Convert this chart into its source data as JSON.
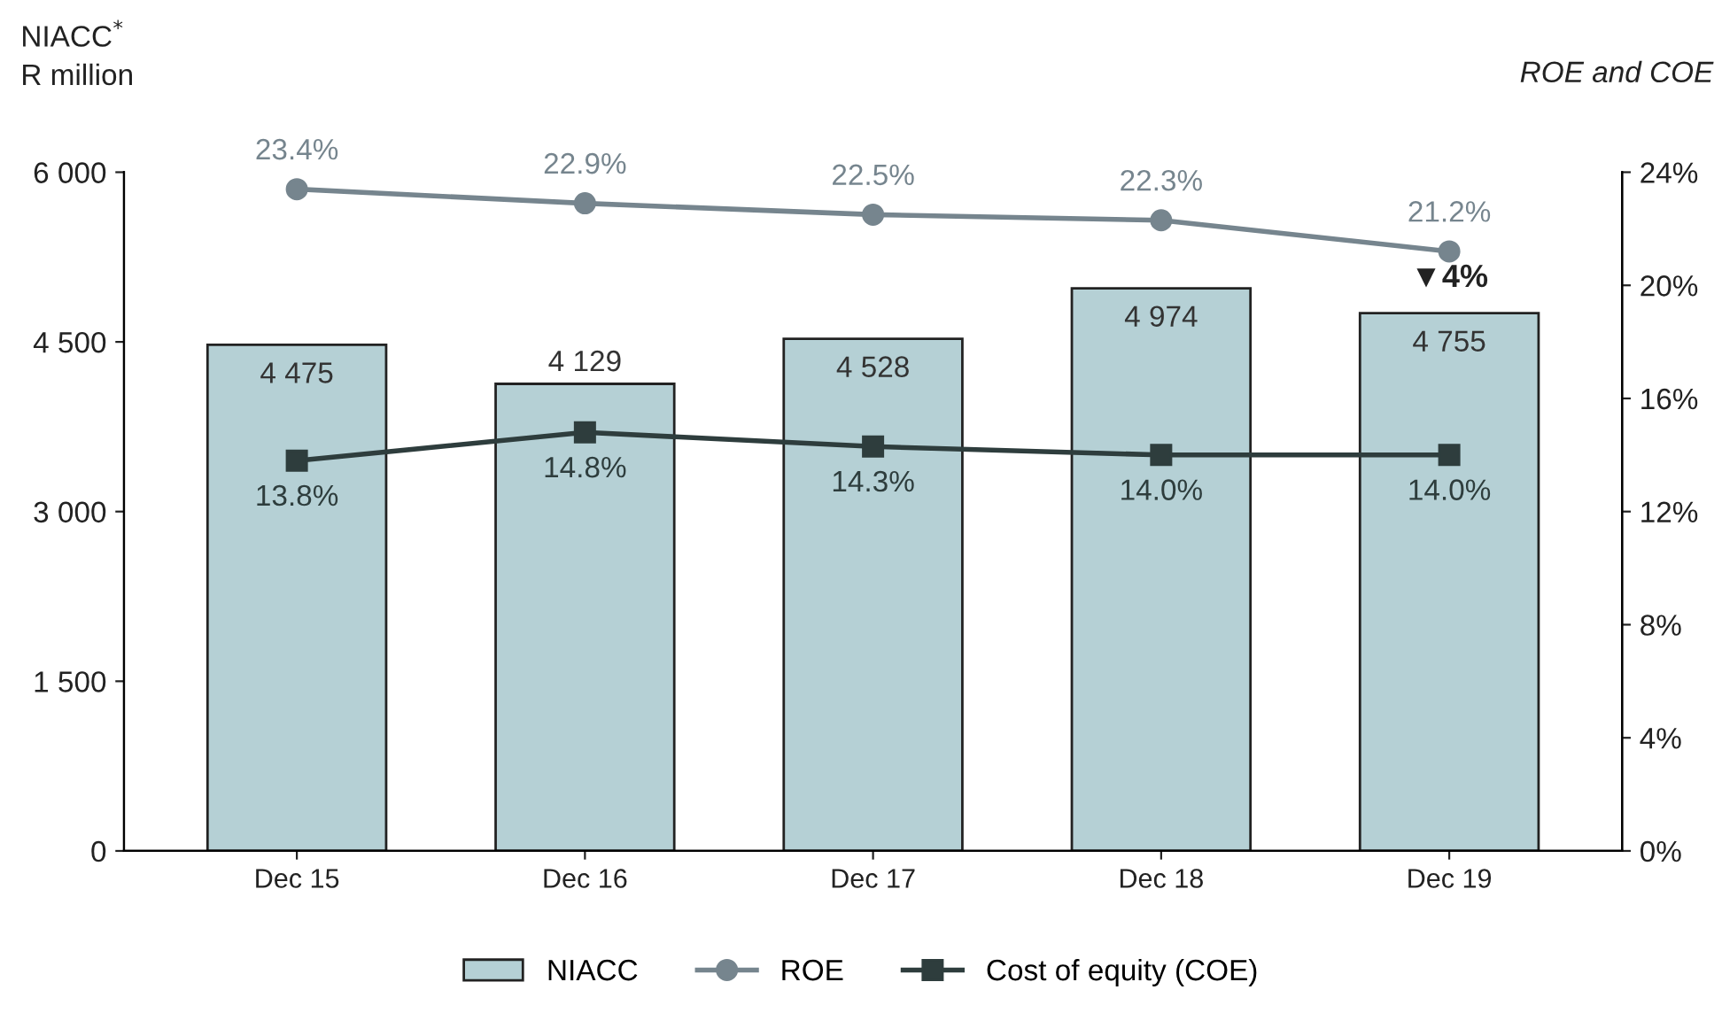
{
  "chart_data": {
    "type": "bar",
    "ylabel": "NIACC$^{*}$\nR million",
    "y2label": "ROE and COE",
    "categories": [
      "Dec 15",
      "Dec 16",
      "Dec 17",
      "Dec 18",
      "Dec 19"
    ],
    "series": [
      {
        "name": "NIACC",
        "color": "#b5d0d5",
        "values": [
          4475,
          4129,
          4528,
          4974,
          4755
        ],
        "value_labels": [
          "4 475",
          "4 129",
          "4 528",
          "4 974",
          "4 755"
        ]
      },
      {
        "name": "ROE",
        "type": "line",
        "axis": "y2",
        "marker": "circle",
        "color": "#76858e",
        "values": [
          23.4,
          22.9,
          22.5,
          22.3,
          21.2
        ],
        "value_labels": [
          "23.4%",
          "22.9%",
          "22.5%",
          "22.3%",
          "21.2%"
        ]
      },
      {
        "name": "Cost of equity (COE)",
        "type": "line",
        "axis": "y2",
        "marker": "square",
        "color": "#2e3d3d",
        "values": [
          13.8,
          14.8,
          14.3,
          14.0,
          14.0
        ],
        "value_labels": [
          "13.8%",
          "14.8%",
          "14.3%",
          "14.0%",
          "14.0%"
        ]
      }
    ],
    "ylim": [
      0,
      6000
    ],
    "yticks": [
      0,
      {
        "value": 1500,
        "label": "1 500"
      },
      {
        "value": 3000,
        "label": "3 000"
      },
      {
        "value": 4500,
        "label": "4 500"
      },
      {
        "value": 6000,
        "label": "6 000"
      }
    ],
    "y2lim": [
      0,
      24
    ],
    "y2ticks": [
      {
        "value": 0,
        "label": "0%"
      },
      {
        "value": 4,
        "label": "4%"
      },
      {
        "value": 8,
        "label": "8%"
      },
      {
        "value": 12,
        "label": "12%"
      },
      {
        "value": 16,
        "label": "16%"
      },
      {
        "value": 20,
        "label": "20%"
      },
      {
        "value": 24,
        "label": "24%"
      }
    ],
    "annotations": [
      {
        "text": "▼4%",
        "x": "Dec 19",
        "y": 4755
      }
    ],
    "line_style": "solid",
    "grid": false,
    "legend": "bottom"
  }
}
